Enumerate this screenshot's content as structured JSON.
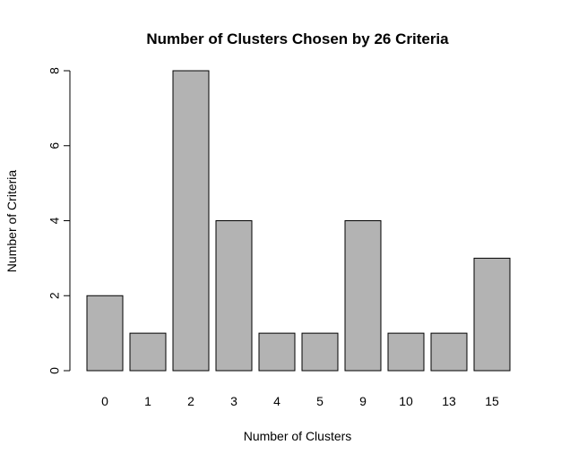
{
  "chart_data": {
    "type": "bar",
    "title": "Number of Clusters Chosen by 26 Criteria",
    "xlabel": "Number of Clusters",
    "ylabel": "Number of Criteria",
    "categories": [
      "0",
      "1",
      "2",
      "3",
      "4",
      "5",
      "9",
      "10",
      "13",
      "15"
    ],
    "values": [
      2,
      1,
      8,
      4,
      1,
      1,
      4,
      1,
      1,
      3
    ],
    "ylim": [
      0,
      8
    ],
    "yticks": [
      "0",
      "2",
      "4",
      "6",
      "8"
    ],
    "grid": false,
    "legend": "none",
    "bar_color": "#b3b3b3",
    "bar_edge_color": "#000000"
  }
}
